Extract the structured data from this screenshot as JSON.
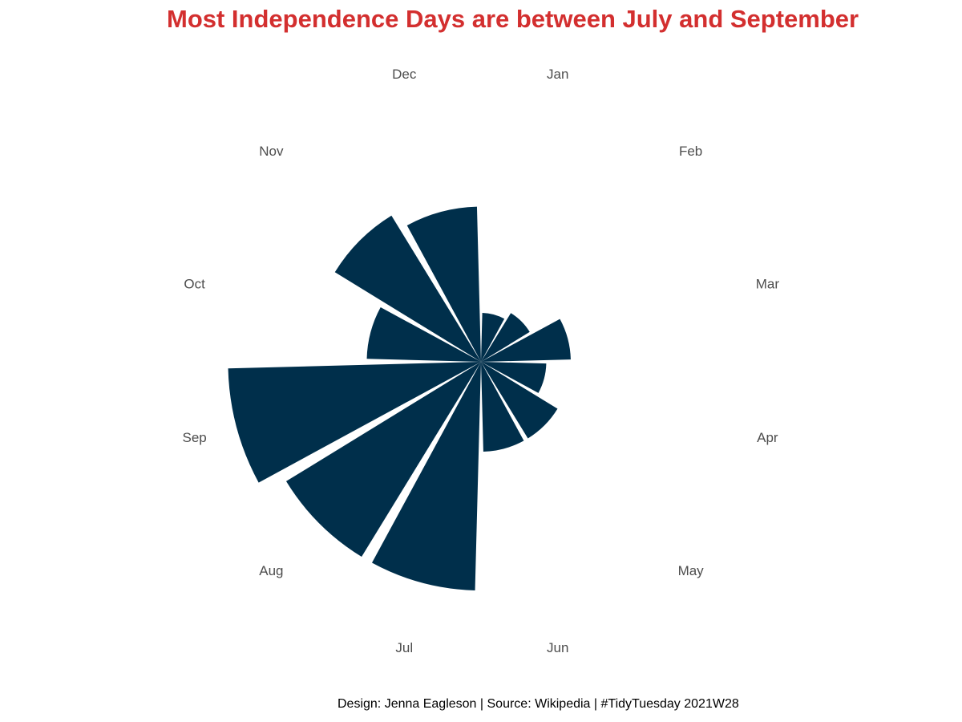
{
  "chart_data": {
    "type": "bar",
    "coordinate_system": "polar",
    "title": "Most Independence Days are between July and September",
    "caption": "Design: Jenna Eagleson | Source: Wikipedia | #TidyTuesday 2021W28",
    "categories": [
      "Jan",
      "Feb",
      "Mar",
      "Apr",
      "May",
      "Jun",
      "Jul",
      "Aug",
      "Sep",
      "Oct",
      "Nov",
      "Dec"
    ],
    "values": [
      6,
      7,
      11,
      8,
      11,
      11,
      28,
      28,
      31,
      14,
      21,
      19
    ],
    "grid": false,
    "legend": "none"
  },
  "colors": {
    "bar": "#002f4b",
    "title": "#d32f2f",
    "axis_text": "#4d4d4d",
    "caption": "#000000",
    "background": "#ffffff"
  }
}
